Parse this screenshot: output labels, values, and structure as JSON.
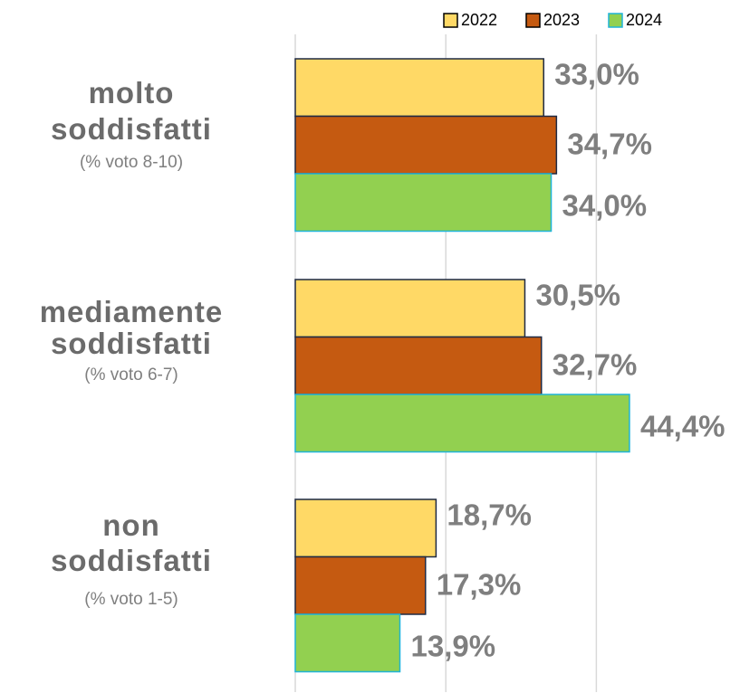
{
  "chart_data": {
    "type": "hbar",
    "categories": [
      "molto soddisfatti",
      "mediamente soddisfatti",
      "non soddisfatti"
    ],
    "category_notes": [
      "(% voto 8-10)",
      "(% voto 6-7)",
      "(% voto 1-5)"
    ],
    "series": [
      {
        "name": "2022",
        "color": "#FFD966",
        "border": "#1f2a44",
        "values": [
          33.0,
          30.5,
          18.7
        ],
        "value_labels": [
          "33,0%",
          "30,5%",
          "18,7%"
        ]
      },
      {
        "name": "2023",
        "color": "#C55A11",
        "border": "#1f2a44",
        "values": [
          34.7,
          32.7,
          17.3
        ],
        "value_labels": [
          "34,7%",
          "32,7%",
          "17,3%"
        ]
      },
      {
        "name": "2024",
        "color": "#92D050",
        "border": "#1fb4d8",
        "values": [
          34.0,
          44.4,
          13.9
        ],
        "value_labels": [
          "34,0%",
          "44,4%",
          "13,9%"
        ]
      }
    ],
    "xlim": [
      0,
      50
    ],
    "xticks": [
      0,
      20,
      40
    ],
    "grid": true,
    "legend": "top-right"
  }
}
